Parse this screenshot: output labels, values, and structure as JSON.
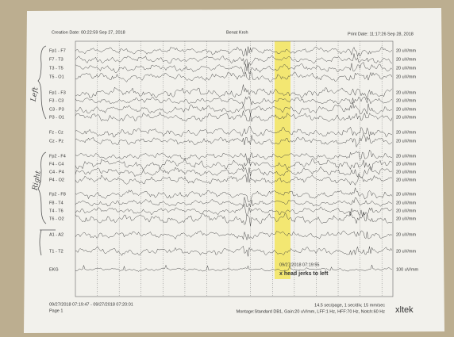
{
  "header": {
    "creation_date": "Creation Date: 00:22:59 Sep 27, 2018",
    "patient": "Benat Kroh",
    "print_date": "Print Date: 11:17:26 Sep 28, 2018"
  },
  "handwritten": {
    "left": "Left",
    "right": "Right"
  },
  "channels": [
    {
      "label": "Fp1 - F7",
      "sensitivity": "20 uV/mm"
    },
    {
      "label": "F7 - T3",
      "sensitivity": "20 uV/mm"
    },
    {
      "label": "T3 - T5",
      "sensitivity": "20 uV/mm"
    },
    {
      "label": "T5 - O1",
      "sensitivity": "20 uV/mm"
    },
    {
      "label": "Fp1 - F3",
      "sensitivity": "20 uV/mm"
    },
    {
      "label": "F3 - C3",
      "sensitivity": "20 uV/mm"
    },
    {
      "label": "C3 - P3",
      "sensitivity": "20 uV/mm"
    },
    {
      "label": "P3 - O1",
      "sensitivity": "20 uV/mm"
    },
    {
      "label": "Fz - Cz",
      "sensitivity": "20 uV/mm"
    },
    {
      "label": "Cz - Pz",
      "sensitivity": "20 uV/mm"
    },
    {
      "label": "Fp2 - F4",
      "sensitivity": "20 uV/mm"
    },
    {
      "label": "F4 - C4",
      "sensitivity": "20 uV/mm"
    },
    {
      "label": "C4 - P4",
      "sensitivity": "20 uV/mm"
    },
    {
      "label": "P4 - O2",
      "sensitivity": "20 uV/mm"
    },
    {
      "label": "Fp2 - F8",
      "sensitivity": "20 uV/mm"
    },
    {
      "label": "F8 - T4",
      "sensitivity": "20 uV/mm"
    },
    {
      "label": "T4 - T6",
      "sensitivity": "20 uV/mm"
    },
    {
      "label": "T6 - O2",
      "sensitivity": "20 uV/mm"
    },
    {
      "label": "A1 - A2",
      "sensitivity": "20 uV/mm"
    },
    {
      "label": "T1 - T2",
      "sensitivity": "20 uV/mm"
    },
    {
      "label": "EKG",
      "sensitivity": "100 uV/mm"
    }
  ],
  "annotation": {
    "time": "09/27/2018 07:19:55",
    "text": "x head jerks to left"
  },
  "footer": {
    "range": "09/27/2018 07:19:47 - 09/27/2018 07:20:01",
    "page": "Page 1",
    "speed": "14.5 sec/page, 1 sec/div, 15 mm/sec",
    "montage": "Montage:Standard DB1, Gain:20 uV/mm, LFF:1 Hz, HFF:70 Hz, Notch:60 Hz",
    "logo": "xltek"
  }
}
